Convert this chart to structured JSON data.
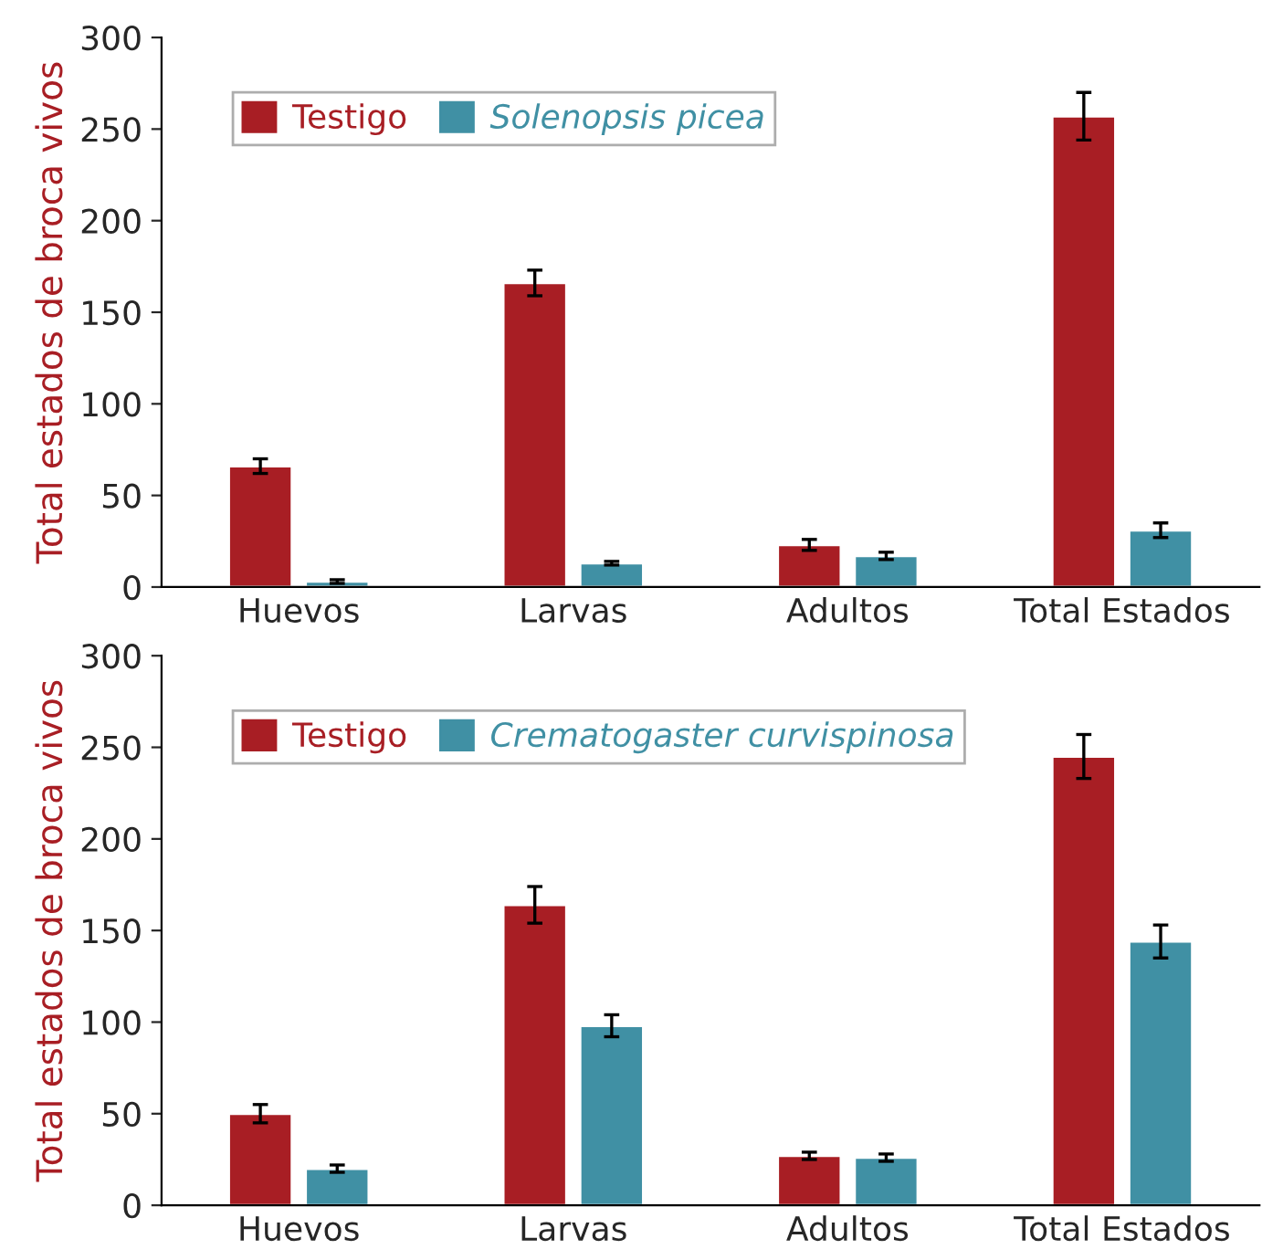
{
  "chart_data": [
    {
      "type": "bar",
      "ylabel": "Total estados de broca vivos",
      "categories": [
        "Huevos",
        "Larvas",
        "Adultos",
        "Total Estados"
      ],
      "ylim": [
        0,
        300
      ],
      "yticks": [
        0,
        50,
        100,
        150,
        200,
        250,
        300
      ],
      "legend": "top left",
      "grid": false,
      "series": [
        {
          "name": "Testigo",
          "color": "#a81e24",
          "values": [
            66,
            166,
            23,
            257
          ],
          "errors": [
            4,
            7,
            3,
            13
          ]
        },
        {
          "name": "Solenopsis picea",
          "color": "#4090a4",
          "values": [
            3,
            13,
            17,
            31
          ],
          "errors": [
            1,
            1,
            2,
            4
          ]
        }
      ]
    },
    {
      "type": "bar",
      "ylabel": "Total estados de broca vivos",
      "categories": [
        "Huevos",
        "Larvas",
        "Adultos",
        "Total Estados"
      ],
      "ylim": [
        0,
        300
      ],
      "yticks": [
        0,
        50,
        100,
        150,
        200,
        250,
        300
      ],
      "legend": "top left",
      "grid": false,
      "series": [
        {
          "name": "Testigo",
          "color": "#a81e24",
          "values": [
            50,
            164,
            27,
            245
          ],
          "errors": [
            5,
            10,
            2,
            12
          ]
        },
        {
          "name": "Crematogaster curvispinosa",
          "color": "#4090a4",
          "values": [
            20,
            98,
            26,
            144
          ],
          "errors": [
            2,
            6,
            2,
            9
          ]
        }
      ]
    }
  ]
}
